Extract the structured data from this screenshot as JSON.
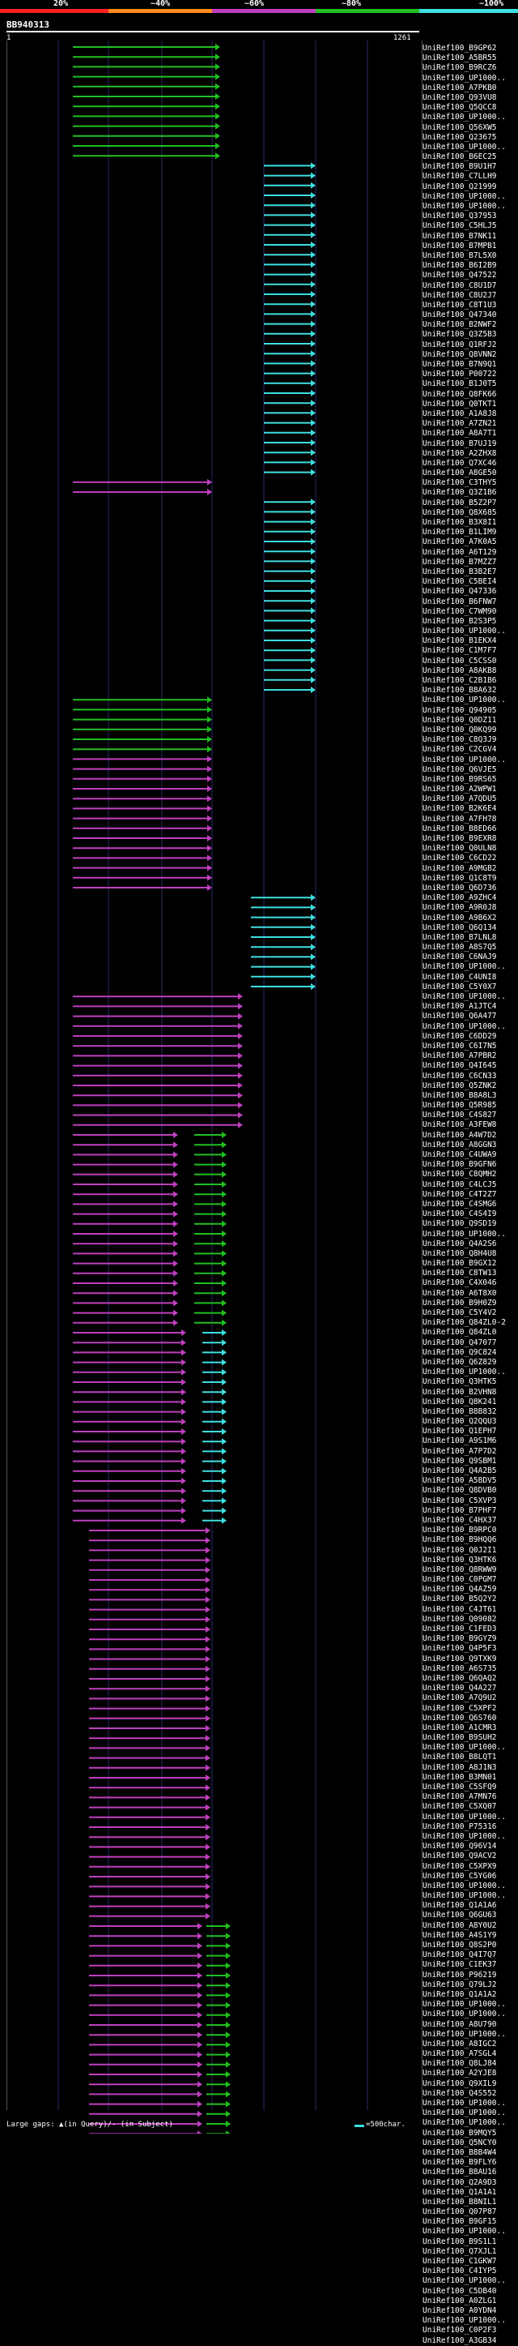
{
  "legend": {
    "labels": [
      "20%",
      "~40%",
      "~60%",
      "~80%",
      "~100%"
    ],
    "colors": [
      "#ff2020",
      "#ff8c1a",
      "#bf3fbf",
      "#20c020",
      "#3fdfdf"
    ]
  },
  "query": {
    "id": "BB940313",
    "start": "1",
    "end": "1261"
  },
  "hits": [
    {
      "id": "UniRef100_B9GP62"
    },
    {
      "id": "UniRef100_A5BR55"
    },
    {
      "id": "UniRef100_B9RCZ6"
    },
    {
      "id": "UniRef100_UP1000.."
    },
    {
      "id": "UniRef100_A7PKB0"
    },
    {
      "id": "UniRef100_Q93VU8"
    },
    {
      "id": "UniRef100_Q5QCC8"
    },
    {
      "id": "UniRef100_UP1000.."
    },
    {
      "id": "UniRef100_Q56XW5"
    },
    {
      "id": "UniRef100_Q23675"
    },
    {
      "id": "UniRef100_UP1000.."
    },
    {
      "id": "UniRef100_B6EC25"
    },
    {
      "id": "UniRef100_B9U1H7"
    },
    {
      "id": "UniRef100_C7LLH9"
    },
    {
      "id": "UniRef100_Q21999"
    },
    {
      "id": "UniRef100_UP1000.."
    },
    {
      "id": "UniRef100_UP1000.."
    },
    {
      "id": "UniRef100_Q37953"
    },
    {
      "id": "UniRef100_C5HLJ5"
    },
    {
      "id": "UniRef100_B7NK11"
    },
    {
      "id": "UniRef100_B7MPB1"
    },
    {
      "id": "UniRef100_B7L5X0"
    },
    {
      "id": "UniRef100_B6I2B9"
    },
    {
      "id": "UniRef100_Q47522"
    },
    {
      "id": "UniRef100_C8U1D7"
    },
    {
      "id": "UniRef100_C8U2J7"
    },
    {
      "id": "UniRef100_C8T1U3"
    },
    {
      "id": "UniRef100_Q47340"
    },
    {
      "id": "UniRef100_B2NWF2"
    },
    {
      "id": "UniRef100_Q3Z5B3"
    },
    {
      "id": "UniRef100_Q1RFJ2"
    },
    {
      "id": "UniRef100_Q8VNN2"
    },
    {
      "id": "UniRef100_B7N9Q1"
    },
    {
      "id": "UniRef100_P00722"
    },
    {
      "id": "UniRef100_B1J0T5"
    },
    {
      "id": "UniRef100_Q8FK66"
    },
    {
      "id": "UniRef100_Q0TKT1"
    },
    {
      "id": "UniRef100_A1A8J8"
    },
    {
      "id": "UniRef100_A7ZN21"
    },
    {
      "id": "UniRef100_A8A7T1"
    },
    {
      "id": "UniRef100_B7UJ19"
    },
    {
      "id": "UniRef100_A2ZHX8"
    },
    {
      "id": "UniRef100_Q7XC46"
    },
    {
      "id": "UniRef100_A8GE50"
    },
    {
      "id": "UniRef100_C3THY5"
    },
    {
      "id": "UniRef100_Q3Z1B6"
    },
    {
      "id": "UniRef100_B5Z2P7"
    },
    {
      "id": "UniRef100_Q8X685"
    },
    {
      "id": "UniRef100_B3X8I1"
    },
    {
      "id": "UniRef100_B1LIM9"
    },
    {
      "id": "UniRef100_A7K0A5"
    },
    {
      "id": "UniRef100_A6T129"
    },
    {
      "id": "UniRef100_B7MZZ7"
    },
    {
      "id": "UniRef100_B3B2E7"
    },
    {
      "id": "UniRef100_C5BEI4"
    },
    {
      "id": "UniRef100_Q47336"
    },
    {
      "id": "UniRef100_B6FNW7"
    },
    {
      "id": "UniRef100_C7WM90"
    },
    {
      "id": "UniRef100_B2S3P5"
    },
    {
      "id": "UniRef100_UP1000.."
    },
    {
      "id": "UniRef100_B1EKX4"
    },
    {
      "id": "UniRef100_C1M7F7"
    },
    {
      "id": "UniRef100_C5CSS0"
    },
    {
      "id": "UniRef100_A8AKB8"
    },
    {
      "id": "UniRef100_C2B1B6"
    },
    {
      "id": "UniRef100_B8A632"
    },
    {
      "id": "UniRef100_UP1000.."
    },
    {
      "id": "UniRef100_Q94905"
    },
    {
      "id": "UniRef100_Q0DZ11"
    },
    {
      "id": "UniRef100_Q0KQ99"
    },
    {
      "id": "UniRef100_C8Q3J9"
    },
    {
      "id": "UniRef100_C2CGV4"
    },
    {
      "id": "UniRef100_UP1000.."
    },
    {
      "id": "UniRef100_Q6VJE5"
    },
    {
      "id": "UniRef100_B9RS65"
    },
    {
      "id": "UniRef100_A2WPW1"
    },
    {
      "id": "UniRef100_A7QDU5"
    },
    {
      "id": "UniRef100_B2K6E4"
    },
    {
      "id": "UniRef100_A7FH78"
    },
    {
      "id": "UniRef100_B8ED66"
    },
    {
      "id": "UniRef100_B9EXR8"
    },
    {
      "id": "UniRef100_Q0ULN8"
    },
    {
      "id": "UniRef100_C6CD22"
    },
    {
      "id": "UniRef100_A9MGB2"
    },
    {
      "id": "UniRef100_Q1C8T9"
    },
    {
      "id": "UniRef100_Q6D736"
    },
    {
      "id": "UniRef100_A9ZHC4"
    },
    {
      "id": "UniRef100_A9R0J8"
    },
    {
      "id": "UniRef100_A9B6X2"
    },
    {
      "id": "UniRef100_Q6Q134"
    },
    {
      "id": "UniRef100_B7LNL8"
    },
    {
      "id": "UniRef100_A8S7Q5"
    },
    {
      "id": "UniRef100_C6NAJ9"
    },
    {
      "id": "UniRef100_UP1000.."
    },
    {
      "id": "UniRef100_C4UNI8"
    },
    {
      "id": "UniRef100_C5Y0X7"
    },
    {
      "id": "UniRef100_UP1000.."
    },
    {
      "id": "UniRef100_A1JTC4"
    },
    {
      "id": "UniRef100_Q6A477"
    },
    {
      "id": "UniRef100_UP1000.."
    },
    {
      "id": "UniRef100_C6DD29"
    },
    {
      "id": "UniRef100_C6I7N5"
    },
    {
      "id": "UniRef100_A7PBR2"
    },
    {
      "id": "UniRef100_Q4I645"
    },
    {
      "id": "UniRef100_C6CN33"
    },
    {
      "id": "UniRef100_Q5ZNK2"
    },
    {
      "id": "UniRef100_B8A8L3"
    },
    {
      "id": "UniRef100_Q5R985"
    },
    {
      "id": "UniRef100_C4S827"
    },
    {
      "id": "UniRef100_A3FEW8"
    },
    {
      "id": "UniRef100_A4W7D2"
    },
    {
      "id": "UniRef100_A8GGN3"
    },
    {
      "id": "UniRef100_C4UWA9"
    },
    {
      "id": "UniRef100_B9GFN6"
    },
    {
      "id": "UniRef100_C8QMH2"
    },
    {
      "id": "UniRef100_C4LCJ5"
    },
    {
      "id": "UniRef100_C4T2Z7"
    },
    {
      "id": "UniRef100_C4SMG6"
    },
    {
      "id": "UniRef100_C4S4I9"
    },
    {
      "id": "UniRef100_Q9SD19"
    },
    {
      "id": "UniRef100_UP1000.."
    },
    {
      "id": "UniRef100_Q4A2S6"
    },
    {
      "id": "UniRef100_Q8H4U8"
    },
    {
      "id": "UniRef100_B9GX12"
    },
    {
      "id": "UniRef100_C8TW13"
    },
    {
      "id": "UniRef100_C4X046"
    },
    {
      "id": "UniRef100_A6T8X0"
    },
    {
      "id": "UniRef100_B9H0Z9"
    },
    {
      "id": "UniRef100_C5Y4V2"
    },
    {
      "id": "UniRef100_Q84ZL0-2"
    },
    {
      "id": "UniRef100_Q84ZL0"
    },
    {
      "id": "UniRef100_Q47077"
    },
    {
      "id": "UniRef100_Q9C824"
    },
    {
      "id": "UniRef100_Q6Z829"
    },
    {
      "id": "UniRef100_UP1000.."
    },
    {
      "id": "UniRef100_Q3HTK5"
    },
    {
      "id": "UniRef100_B2VHN8"
    },
    {
      "id": "UniRef100_Q8K241"
    },
    {
      "id": "UniRef100_B8B832"
    },
    {
      "id": "UniRef100_Q2QQU3"
    },
    {
      "id": "UniRef100_Q1EPH7"
    },
    {
      "id": "UniRef100_A9S1M6"
    },
    {
      "id": "UniRef100_A7P7D2"
    },
    {
      "id": "UniRef100_Q9SBM1"
    },
    {
      "id": "UniRef100_Q4A2B5"
    },
    {
      "id": "UniRef100_A5BDV5"
    },
    {
      "id": "UniRef100_Q8DVB0"
    },
    {
      "id": "UniRef100_C5XVP3"
    },
    {
      "id": "UniRef100_B7PHF7"
    },
    {
      "id": "UniRef100_C4HX37"
    },
    {
      "id": "UniRef100_B9RPC0"
    },
    {
      "id": "UniRef100_B9HQQ6"
    },
    {
      "id": "UniRef100_Q0J2I1"
    },
    {
      "id": "UniRef100_Q3HTK6"
    },
    {
      "id": "UniRef100_Q8RWW9"
    },
    {
      "id": "UniRef100_C0PGM7"
    },
    {
      "id": "UniRef100_Q4AZ59"
    },
    {
      "id": "UniRef100_B5Q2Y2"
    },
    {
      "id": "UniRef100_C4JT61"
    },
    {
      "id": "UniRef100_Q09082"
    },
    {
      "id": "UniRef100_C1FED3"
    },
    {
      "id": "UniRef100_B9GYZ9"
    },
    {
      "id": "UniRef100_Q4P5F3"
    },
    {
      "id": "UniRef100_Q9TXK9"
    },
    {
      "id": "UniRef100_A6S735"
    },
    {
      "id": "UniRef100_Q6QAQ2"
    },
    {
      "id": "UniRef100_Q4A227"
    },
    {
      "id": "UniRef100_A7Q9U2"
    },
    {
      "id": "UniRef100_C5XPF2"
    },
    {
      "id": "UniRef100_Q6S760"
    },
    {
      "id": "UniRef100_A1CMR3"
    },
    {
      "id": "UniRef100_B9SUH2"
    },
    {
      "id": "UniRef100_UP1000.."
    },
    {
      "id": "UniRef100_B8LQT1"
    },
    {
      "id": "UniRef100_A8J1N3"
    },
    {
      "id": "UniRef100_B3MN01"
    },
    {
      "id": "UniRef100_C5SFQ9"
    },
    {
      "id": "UniRef100_A7MN76"
    },
    {
      "id": "UniRef100_C5XQ07"
    },
    {
      "id": "UniRef100_UP1000.."
    },
    {
      "id": "UniRef100_P75316"
    },
    {
      "id": "UniRef100_UP1000.."
    },
    {
      "id": "UniRef100_Q96V14"
    },
    {
      "id": "UniRef100_Q9ACV2"
    },
    {
      "id": "UniRef100_C5XPX9"
    },
    {
      "id": "UniRef100_C5YG06"
    },
    {
      "id": "UniRef100_UP1000.."
    },
    {
      "id": "UniRef100_UP1000.."
    },
    {
      "id": "UniRef100_Q1A1A6"
    },
    {
      "id": "UniRef100_Q6GU63"
    },
    {
      "id": "UniRef100_A8Y0U2"
    },
    {
      "id": "UniRef100_A4S1Y9"
    },
    {
      "id": "UniRef100_Q8S2P0"
    },
    {
      "id": "UniRef100_Q4I7Q7"
    },
    {
      "id": "UniRef100_C1EK37"
    },
    {
      "id": "UniRef100_P96219"
    },
    {
      "id": "UniRef100_Q79LJ2"
    },
    {
      "id": "UniRef100_Q1A1A2"
    },
    {
      "id": "UniRef100_UP1000.."
    },
    {
      "id": "UniRef100_UP1000.."
    },
    {
      "id": "UniRef100_A8U790"
    },
    {
      "id": "UniRef100_UP1000.."
    },
    {
      "id": "UniRef100_A8IGC2"
    },
    {
      "id": "UniRef100_A7SGL4"
    },
    {
      "id": "UniRef100_Q8LJ84"
    },
    {
      "id": "UniRef100_A2YJE8"
    },
    {
      "id": "UniRef100_Q9XIL9"
    },
    {
      "id": "UniRef100_Q4S552"
    },
    {
      "id": "UniRef100_UP1000.."
    },
    {
      "id": "UniRef100_UP1000.."
    },
    {
      "id": "UniRef100_UP1000.."
    },
    {
      "id": "UniRef100_B9MQY5"
    },
    {
      "id": "UniRef100_Q5NCY0"
    },
    {
      "id": "UniRef100_B8B4W4"
    },
    {
      "id": "UniRef100_B9FLY6"
    },
    {
      "id": "UniRef100_B8AU16"
    },
    {
      "id": "UniRef100_Q2A9D3"
    },
    {
      "id": "UniRef100_Q1A1A1"
    },
    {
      "id": "UniRef100_B8NIL1"
    },
    {
      "id": "UniRef100_Q07P87"
    },
    {
      "id": "UniRef100_B9GF15"
    },
    {
      "id": "UniRef100_UP1000.."
    },
    {
      "id": "UniRef100_B9S1L1"
    },
    {
      "id": "UniRef100_Q7XJL1"
    },
    {
      "id": "UniRef100_C1GKW7"
    },
    {
      "id": "UniRef100_C4IYP5"
    },
    {
      "id": "UniRef100_UP1000.."
    },
    {
      "id": "UniRef100_C5DB40"
    },
    {
      "id": "UniRef100_A0ZLG1"
    },
    {
      "id": "UniRef100_A0YDN4"
    },
    {
      "id": "UniRef100_UP1000.."
    },
    {
      "id": "UniRef100_C0P2F3"
    },
    {
      "id": "UniRef100_A3GB34"
    }
  ],
  "footer": {
    "large_gaps": "Large gaps: ▲(in Query)/- (in Subject)",
    "scale_note": "=500char."
  }
}
